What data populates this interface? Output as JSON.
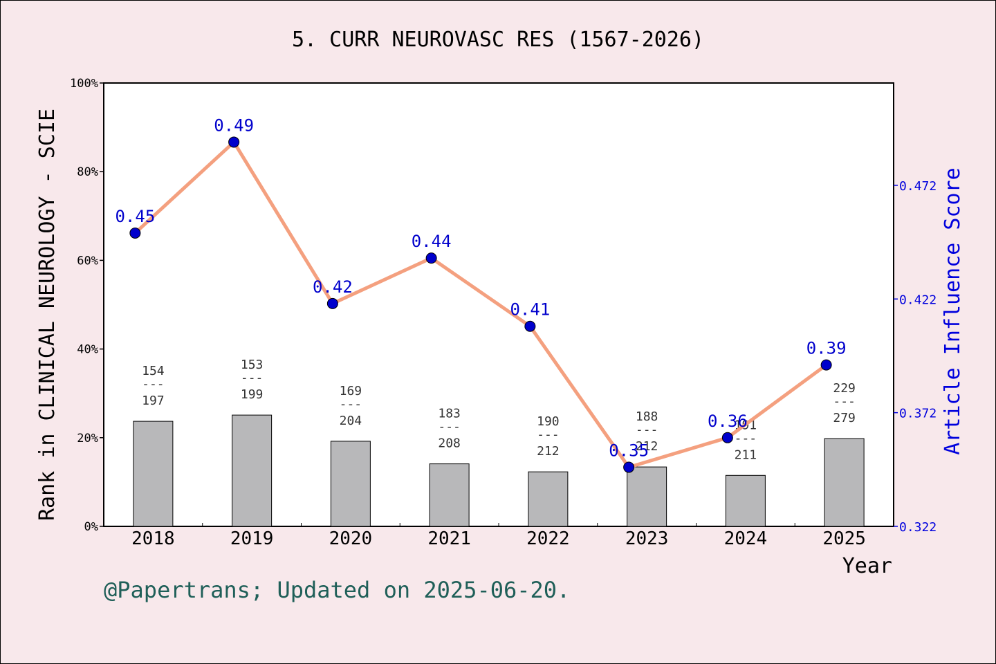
{
  "chart_data": {
    "type": "bar+line",
    "title": "5. CURR NEUROVASC RES (1567-2026)",
    "xlabel": "Year",
    "ylabel_left": "Rank in CLINICAL NEUROLOGY - SCIE",
    "ylabel_right": "Article Influence Score",
    "categories": [
      "2018",
      "2019",
      "2020",
      "2021",
      "2022",
      "2023",
      "2024",
      "2025"
    ],
    "left_axis": {
      "ylim": [
        0,
        100
      ],
      "ticks": [
        0,
        20,
        40,
        60,
        80,
        100
      ],
      "tick_labels": [
        "0%",
        "20%",
        "40%",
        "60%",
        "80%",
        "100%"
      ]
    },
    "right_axis": {
      "ylim": [
        0.322,
        0.517
      ],
      "ticks": [
        0.322,
        0.372,
        0.422,
        0.472
      ],
      "tick_labels": [
        "0.322",
        "0.372",
        "0.422",
        "0.472"
      ]
    },
    "bars": {
      "rank": [
        154,
        153,
        169,
        183,
        190,
        188,
        191,
        229
      ],
      "total": [
        197,
        199,
        204,
        208,
        212,
        212,
        211,
        279
      ],
      "values_pct": [
        23.7,
        25.1,
        19.2,
        14.1,
        12.3,
        13.4,
        11.5,
        19.8
      ],
      "separator": "---",
      "color": "#b8b8ba"
    },
    "line": {
      "values": [
        0.451,
        0.491,
        0.42,
        0.44,
        0.41,
        0.348,
        0.361,
        0.393
      ],
      "labels": [
        "0.45",
        "0.49",
        "0.42",
        "0.44",
        "0.41",
        "0.35",
        "0.36",
        "0.39"
      ],
      "line_color": "#f4a07f",
      "marker_color": "#0000cc",
      "label_color": "#0000cc"
    },
    "grid": false,
    "legend": "none"
  },
  "footer": {
    "credit": "@Papertrans; Updated on 2025-06-20."
  }
}
